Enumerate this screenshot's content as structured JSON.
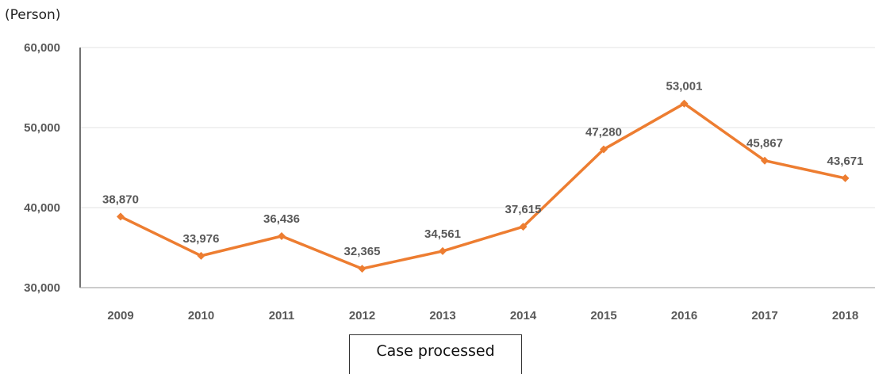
{
  "chart_data": {
    "type": "line",
    "unit_label": "(Person)",
    "categories": [
      "2009",
      "2010",
      "2011",
      "2012",
      "2013",
      "2014",
      "2015",
      "2016",
      "2017",
      "2018"
    ],
    "series": [
      {
        "name": "Case processed",
        "values": [
          38870,
          33976,
          36436,
          32365,
          34561,
          37615,
          47280,
          53001,
          45867,
          43671
        ],
        "color": "#ED7D31"
      }
    ],
    "data_labels": [
      "38,870",
      "33,976",
      "36,436",
      "32,365",
      "34,561",
      "37,615",
      "47,280",
      "53,001",
      "45,867",
      "43,671"
    ],
    "y_ticks": [
      "30,000",
      "40,000",
      "50,000",
      "60,000"
    ],
    "ylim": [
      30000,
      60000
    ],
    "grid": "horizontal",
    "legend_position": "bottom"
  }
}
